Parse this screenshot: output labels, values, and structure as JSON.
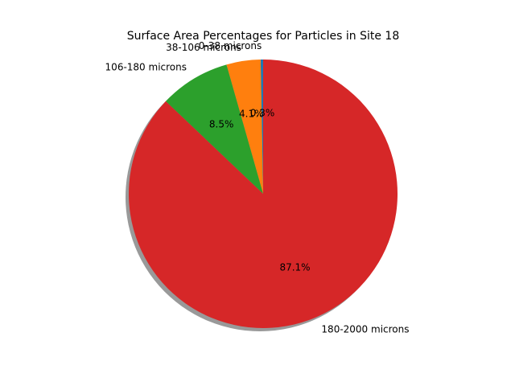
{
  "chart_data": {
    "type": "pie",
    "title": "Surface Area Percentages for Particles in Site 18",
    "start_angle_deg": 90,
    "direction": "counterclockwise",
    "shadow": true,
    "slices": [
      {
        "label": "0-38 microns",
        "value": 0.3,
        "pct_label": "0.3%",
        "color": "#1f77b4"
      },
      {
        "label": "38-106 microns",
        "value": 4.1,
        "pct_label": "4.1%",
        "color": "#ff7f0e"
      },
      {
        "label": "106-180 microns",
        "value": 8.5,
        "pct_label": "8.5%",
        "color": "#2ca02c"
      },
      {
        "label": "180-2000 microns",
        "value": 87.1,
        "pct_label": "87.1%",
        "color": "#d62728"
      }
    ]
  }
}
